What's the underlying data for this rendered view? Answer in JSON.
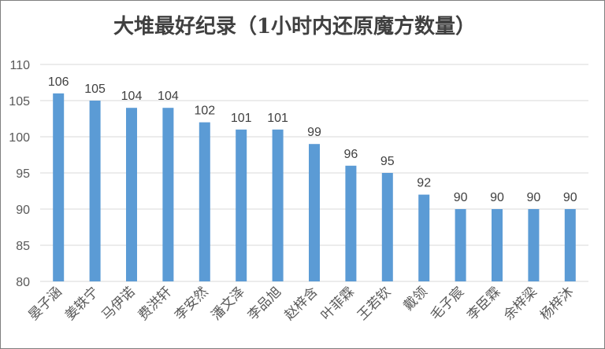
{
  "chart_data": {
    "type": "bar",
    "title": "大堆最好纪录（1小时内还原魔方数量）",
    "categories": [
      "晏子涵",
      "姜轶宁",
      "马伊诺",
      "费洪轩",
      "李安然",
      "潘文泽",
      "李品旭",
      "赵梓含",
      "叶菲霖",
      "王若钦",
      "戴领",
      "毛子宸",
      "李臣霖",
      "余梓梁",
      "杨梓沐"
    ],
    "values": [
      106,
      105,
      104,
      104,
      102,
      101,
      101,
      99,
      96,
      95,
      92,
      90,
      90,
      90,
      90
    ],
    "ylim": [
      80,
      110
    ],
    "yticks": [
      80,
      85,
      90,
      95,
      100,
      105,
      110
    ],
    "grid": true,
    "color": "#5b9bd5",
    "xlabel": "",
    "ylabel": ""
  }
}
